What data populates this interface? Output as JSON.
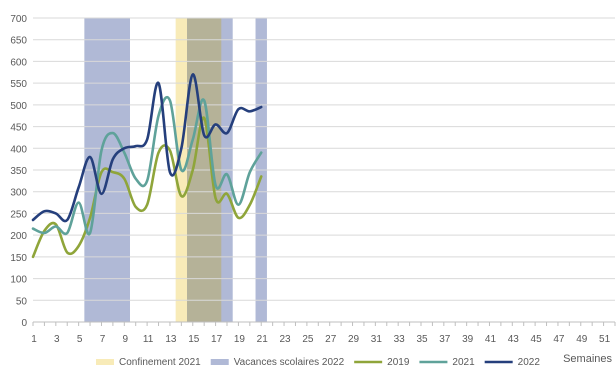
{
  "chart_data": {
    "type": "line",
    "xlabel": "Semaines",
    "ylim": [
      0,
      700
    ],
    "y_ticks": [
      0,
      50,
      100,
      150,
      200,
      250,
      300,
      350,
      400,
      450,
      500,
      550,
      600,
      650,
      700
    ],
    "x_range": [
      1,
      52
    ],
    "x_ticks": [
      1,
      3,
      5,
      7,
      9,
      11,
      13,
      15,
      17,
      19,
      21,
      23,
      25,
      27,
      29,
      31,
      33,
      35,
      37,
      39,
      41,
      43,
      45,
      47,
      49,
      51
    ],
    "grid": true,
    "legend_position": "bottom",
    "shaded_periods": [
      {
        "name": "Confinement 2021",
        "color": "#f8ebb8",
        "ranges": [
          [
            13.5,
            17.5
          ]
        ]
      },
      {
        "name": "Vacances scolaires 2022",
        "color": "#b0b9d6",
        "ranges": [
          [
            5.5,
            9.5
          ],
          [
            14.5,
            18.5
          ],
          [
            20.5,
            21.5
          ]
        ]
      }
    ],
    "overlap_color": "#b5b298",
    "series": [
      {
        "name": "2019",
        "color": "#8fa53a",
        "x": [
          1,
          2,
          3,
          4,
          5,
          6,
          7,
          8,
          9,
          10,
          11,
          12,
          13,
          14,
          15,
          16,
          17,
          18,
          19,
          20,
          21
        ],
        "values": [
          150,
          210,
          225,
          160,
          175,
          240,
          345,
          345,
          330,
          265,
          270,
          390,
          395,
          290,
          350,
          470,
          285,
          295,
          240,
          270,
          335
        ]
      },
      {
        "name": "2021",
        "color": "#5fa29a",
        "x": [
          1,
          2,
          3,
          4,
          5,
          6,
          7,
          8,
          9,
          10,
          11,
          12,
          13,
          14,
          15,
          16,
          17,
          18,
          19,
          20,
          21
        ],
        "values": [
          215,
          205,
          220,
          205,
          275,
          205,
          395,
          435,
          390,
          330,
          325,
          475,
          510,
          350,
          420,
          510,
          315,
          340,
          270,
          345,
          390
        ]
      },
      {
        "name": "2022",
        "color": "#253f7c",
        "x": [
          1,
          2,
          3,
          4,
          5,
          6,
          7,
          8,
          9,
          10,
          11,
          12,
          13,
          14,
          15,
          16,
          17,
          18,
          19,
          20,
          21
        ],
        "values": [
          235,
          255,
          250,
          235,
          310,
          380,
          295,
          375,
          400,
          405,
          420,
          550,
          345,
          400,
          570,
          430,
          455,
          435,
          490,
          485,
          495
        ]
      }
    ]
  }
}
